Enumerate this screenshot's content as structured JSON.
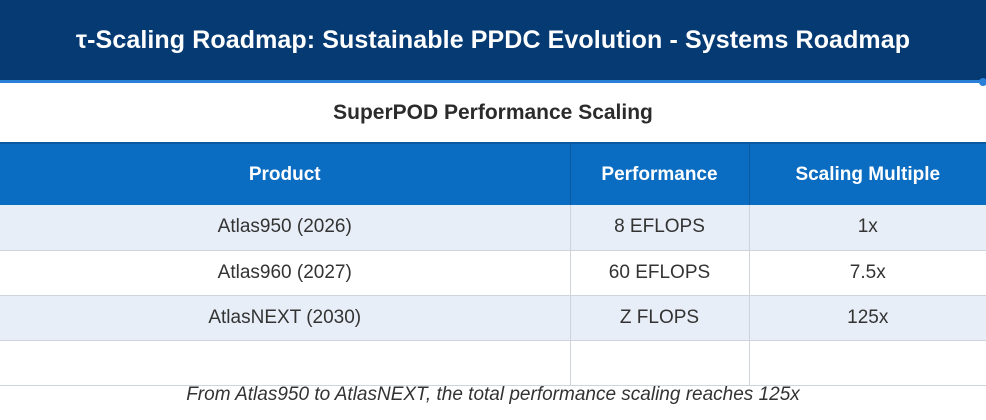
{
  "header": {
    "title": "τ-Scaling Roadmap: Sustainable PPDC Evolution - Systems Roadmap"
  },
  "subtitle": "SuperPOD Performance Scaling",
  "table": {
    "headers": [
      "Product",
      "Performance",
      "Scaling Multiple"
    ],
    "rows": [
      [
        "Atlas950 (2026)",
        "8 EFLOPS",
        "1x"
      ],
      [
        "Atlas960 (2027)",
        "60 EFLOPS",
        "7.5x"
      ],
      [
        "AtlasNEXT (2030)",
        "Z FLOPS",
        "125x"
      ],
      [
        "",
        "",
        ""
      ]
    ]
  },
  "footnote": "From Atlas950 to AtlasNEXT, the total performance scaling reaches 125x",
  "colors": {
    "header_bg": "#063a73",
    "accent": "#2a7fd6",
    "table_header_bg": "#0b6dc1",
    "row_alt_bg": "#e8eef7"
  }
}
